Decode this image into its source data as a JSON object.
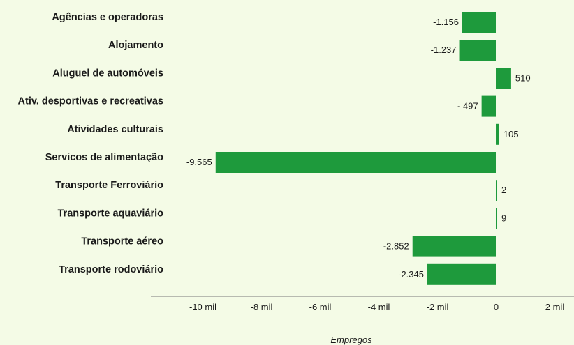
{
  "chart_data": {
    "type": "bar",
    "orientation": "horizontal",
    "categories": [
      "Agências e operadoras",
      "Alojamento",
      "Aluguel de automóveis",
      "Ativ. desportivas e recreativas",
      "Atividades culturais",
      "Servicos de alimentação",
      "Transporte Ferroviário",
      "Transporte aquaviário",
      "Transporte aéreo",
      "Transporte rodoviário"
    ],
    "values": [
      -1156,
      -1237,
      510,
      -497,
      105,
      -9565,
      2,
      9,
      -2852,
      -2345
    ],
    "value_labels": [
      "-1.156",
      "-1.237",
      "510",
      "- 497",
      "105",
      "-9.565",
      "2",
      "9",
      "-2.852",
      "-2.345"
    ],
    "xlabel": "Empregos",
    "xlim": [
      -11000,
      2600
    ],
    "xticks": [
      -10000,
      -8000,
      -6000,
      -4000,
      -2000,
      0,
      2000
    ],
    "xtick_labels": [
      "-10 mil",
      "-8 mil",
      "-6 mil",
      "-4 mil",
      "-2 mil",
      "0",
      "2 mil"
    ],
    "grid": false,
    "bar_color": "#1e9a3c"
  }
}
